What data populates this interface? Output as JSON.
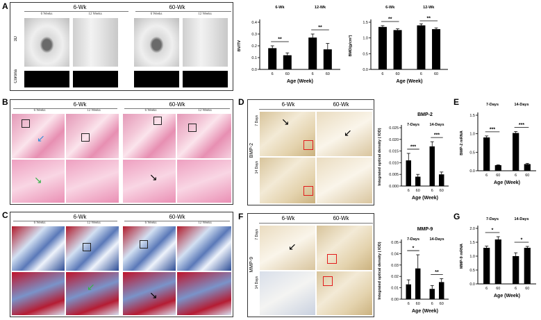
{
  "panels": {
    "A": {
      "label": "A",
      "groups": [
        "6-Wk",
        "60-Wk"
      ],
      "time_labels": [
        "6 Weeks",
        "12 Weeks",
        "6 Weeks",
        "12 Weeks"
      ],
      "row_labels": [
        "3D",
        "Corona"
      ]
    },
    "B": {
      "label": "B",
      "groups": [
        "6-Wk",
        "60-Wk"
      ],
      "time_labels": [
        "6 Weeks",
        "12 Weeks",
        "6 Weeks",
        "12 Weeks"
      ]
    },
    "C": {
      "label": "C",
      "groups": [
        "6-Wk",
        "60-Wk"
      ],
      "time_labels": [
        "6 Weeks",
        "12 Weeks",
        "6 Weeks",
        "12 Weeks"
      ]
    },
    "D": {
      "label": "D",
      "groups": [
        "6-Wk",
        "60-Wk"
      ],
      "row_labels": [
        "7 Days",
        "14 Days"
      ],
      "side_label": "BMP-2"
    },
    "E": {
      "label": "E"
    },
    "F": {
      "label": "F",
      "groups": [
        "6-Wk",
        "60-Wk"
      ],
      "row_labels": [
        "7 Days",
        "14 Days"
      ],
      "side_label": "MMP-9"
    },
    "G": {
      "label": "G"
    }
  },
  "colors": {
    "bar": "#000000",
    "redbox": "#e21a1a",
    "arrow_black": "#000000",
    "arrow_blue": "#3a8fd6",
    "arrow_green": "#38b24a"
  },
  "chart_data": [
    {
      "id": "A-bvtv",
      "type": "bar",
      "groups": [
        "6-Wk",
        "12-Wk"
      ],
      "categories": [
        "6",
        "60"
      ],
      "series": [
        {
          "values": [
            0.18,
            0.12
          ]
        },
        {
          "values": [
            0.27,
            0.17
          ]
        }
      ],
      "errors": [
        [
          0.02,
          0.02
        ],
        [
          0.03,
          0.05
        ]
      ],
      "ylabel": "BV/TV",
      "xlabel": "Age (Week)",
      "ylim": [
        0,
        0.4
      ],
      "yticks": [
        "0.0",
        "0.1",
        "0.2",
        "0.3",
        "0.4"
      ],
      "sig": [
        "**",
        "**"
      ]
    },
    {
      "id": "A-bmd",
      "type": "bar",
      "groups": [
        "6-Wk",
        "12-Wk"
      ],
      "categories": [
        "6",
        "60"
      ],
      "series": [
        {
          "values": [
            1.35,
            1.25
          ]
        },
        {
          "values": [
            1.4,
            1.28
          ]
        }
      ],
      "errors": [
        [
          0.04,
          0.04
        ],
        [
          0.05,
          0.04
        ]
      ],
      "ylabel": "BMD(g/cm³)",
      "xlabel": "Age (Week)",
      "ylim": [
        0,
        1.5
      ],
      "yticks": [
        "0.0",
        "0.5",
        "1.0",
        "1.5"
      ],
      "sig": [
        "**",
        "**"
      ]
    },
    {
      "id": "D-bmp2-iod",
      "type": "bar",
      "title": "BMP-2",
      "groups": [
        "7-Days",
        "14-Days"
      ],
      "categories": [
        "6",
        "60"
      ],
      "series": [
        {
          "values": [
            0.011,
            0.004
          ]
        },
        {
          "values": [
            0.017,
            0.005
          ]
        }
      ],
      "errors": [
        [
          0.003,
          0.001
        ],
        [
          0.002,
          0.001
        ]
      ],
      "ylabel": "Integrated optical density ( IOD)",
      "xlabel": "Age (Week)",
      "ylim": [
        0,
        0.025
      ],
      "yticks": [
        "0.000",
        "0.005",
        "0.010",
        "0.015",
        "0.020",
        "0.025"
      ],
      "sig": [
        "***",
        "***"
      ]
    },
    {
      "id": "E-bmp2-mrna",
      "type": "bar",
      "groups": [
        "7-Days",
        "14-Days"
      ],
      "categories": [
        "6",
        "60"
      ],
      "series": [
        {
          "values": [
            0.9,
            0.15
          ]
        },
        {
          "values": [
            1.02,
            0.18
          ]
        }
      ],
      "errors": [
        [
          0.04,
          0.01
        ],
        [
          0.04,
          0.02
        ]
      ],
      "ylabel": "BMP-2 mRNA",
      "xlabel": "Age (Week)",
      "ylim": [
        0,
        1.5
      ],
      "yticks": [
        "0.0",
        "0.5",
        "1.0",
        "1.5"
      ],
      "sig": [
        "***",
        "***"
      ]
    },
    {
      "id": "F-mmp9-iod",
      "type": "bar",
      "title": "MMP-9",
      "groups": [
        "7-Days",
        "14-Days"
      ],
      "categories": [
        "6",
        "60"
      ],
      "series": [
        {
          "values": [
            0.013,
            0.027
          ]
        },
        {
          "values": [
            0.009,
            0.015
          ]
        }
      ],
      "errors": [
        [
          0.004,
          0.012
        ],
        [
          0.003,
          0.003
        ]
      ],
      "ylabel": "Integrated optical density ( IOD)",
      "xlabel": "Age (Week)",
      "ylim": [
        0,
        0.05
      ],
      "yticks": [
        "0.00",
        "0.01",
        "0.02",
        "0.03",
        "0.04",
        "0.05"
      ],
      "sig": [
        "*",
        "**"
      ]
    },
    {
      "id": "G-mmp9-mrna",
      "type": "bar",
      "groups": [
        "7-Days",
        "14-Days"
      ],
      "categories": [
        "6",
        "60"
      ],
      "series": [
        {
          "values": [
            1.3,
            1.6
          ]
        },
        {
          "values": [
            1.0,
            1.3
          ]
        }
      ],
      "errors": [
        [
          0.06,
          0.1
        ],
        [
          0.12,
          0.05
        ]
      ],
      "ylabel": "MMP-9 mRNA",
      "xlabel": "Age (Week)",
      "ylim": [
        0,
        2.0
      ],
      "yticks": [
        "0.0",
        "0.5",
        "1.0",
        "1.5",
        "2.0"
      ],
      "sig": [
        "*",
        "*"
      ]
    }
  ]
}
